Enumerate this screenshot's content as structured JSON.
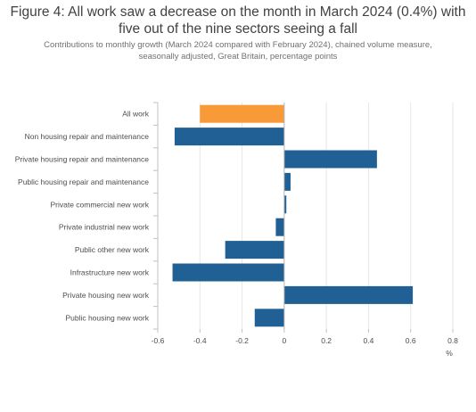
{
  "title_line1": "Figure 4: All work saw a decrease on the month in March 2024 (0.4%) with",
  "title_line2": "five out of the nine sectors seeing a fall",
  "subtitle_line1": "Contributions to monthly growth (March 2024 compared with February 2024), chained volume measure,",
  "subtitle_line2": "seasonally adjusted, Great Britain, percentage points",
  "colors": {
    "highlight": "#f79a37",
    "bar": "#206095",
    "grid": "#e6e6e6",
    "axis": "#c0c0c0"
  },
  "chart_data": {
    "type": "bar",
    "orientation": "horizontal",
    "categories": [
      "All work",
      "Non housing repair and maintenance",
      "Private housing repair and maintenance",
      "Public housing repair and maintenance",
      "Private commercial new work",
      "Private industrial new work",
      "Public other new work",
      "Infrastructure new work",
      "Private housing new work",
      "Public housing new work"
    ],
    "values": [
      -0.4,
      -0.52,
      0.44,
      0.03,
      0.01,
      -0.04,
      -0.28,
      -0.53,
      0.61,
      -0.14
    ],
    "highlight_index": 0,
    "xlim": [
      -0.6,
      0.8
    ],
    "xticks": [
      -0.6,
      -0.4,
      -0.2,
      0,
      0.2,
      0.4,
      0.6,
      0.8
    ],
    "xtick_labels": [
      "-0.6",
      "-0.4",
      "-0.2",
      "0",
      "0.2",
      "0.4",
      "0.6",
      "0.8"
    ],
    "xlabel": "%",
    "grid": true
  }
}
